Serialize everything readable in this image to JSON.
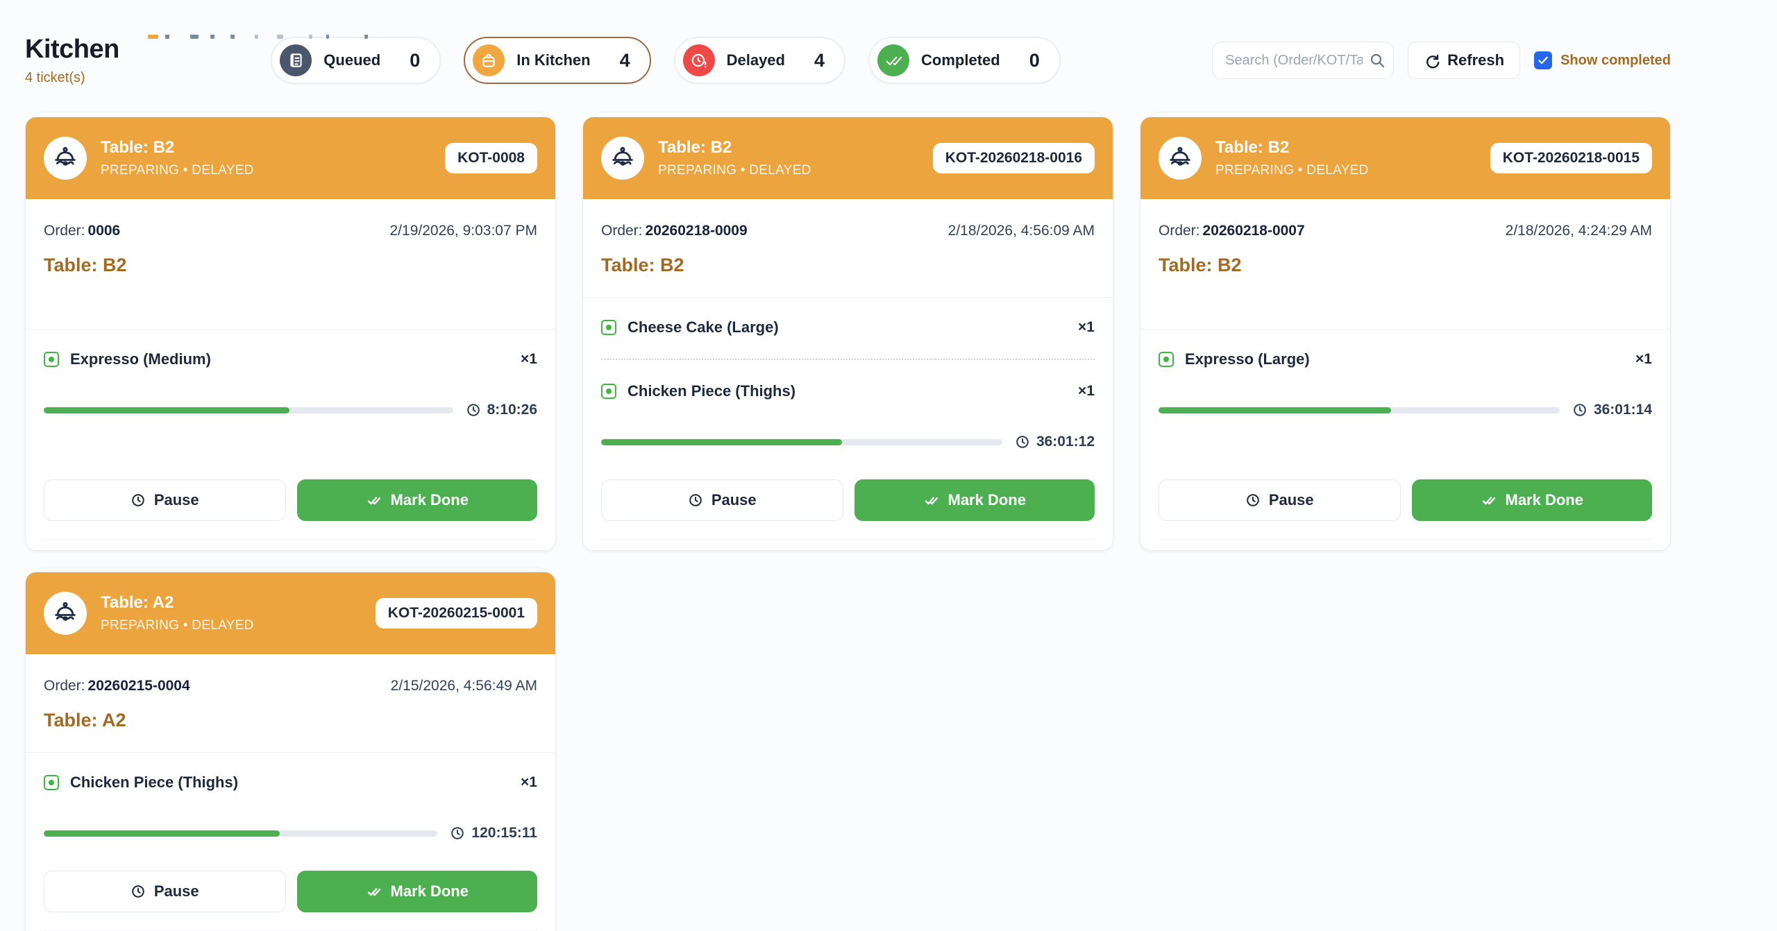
{
  "page": {
    "title": "Kitchen",
    "subtitle": "4 ticket(s)"
  },
  "tabs": [
    {
      "id": "queued",
      "label": "Queued",
      "count": "0",
      "icon": "receipt-icon",
      "circle_color": "#49566B",
      "selected": false
    },
    {
      "id": "in-kitchen",
      "label": "In Kitchen",
      "count": "4",
      "icon": "lunchbox-icon",
      "circle_color": "#F0A73F",
      "selected": true
    },
    {
      "id": "delayed",
      "label": "Delayed",
      "count": "4",
      "icon": "clock-alert-icon",
      "circle_color": "#EF4947",
      "selected": false
    },
    {
      "id": "completed",
      "label": "Completed",
      "count": "0",
      "icon": "double-check-icon",
      "circle_color": "#4CAF50",
      "selected": false
    }
  ],
  "controls": {
    "search_placeholder": "Search (Order/KOT/Tab...",
    "refresh_label": "Refresh",
    "show_completed_label": "Show completed",
    "show_completed_checked": true
  },
  "card_buttons": {
    "pause": "Pause",
    "mark_done": "Mark Done"
  },
  "cards": [
    {
      "table": "Table: B2",
      "status": "PREPARING • DELAYED",
      "kot": "KOT-0008",
      "order_label": "Order:",
      "order_no": "0006",
      "datetime": "2/19/2026, 9:03:07 PM",
      "table_line": "Table: B2",
      "items": [
        {
          "name": "Expresso (Medium)",
          "qty": "×1",
          "progress_pct": 60,
          "time": "8:10:26"
        }
      ]
    },
    {
      "table": "Table: B2",
      "status": "PREPARING • DELAYED",
      "kot": "KOT-20260218-0016",
      "order_label": "Order:",
      "order_no": "20260218-0009",
      "datetime": "2/18/2026, 4:56:09 AM",
      "table_line": "Table: B2",
      "items": [
        {
          "name": "Cheese Cake (Large)",
          "qty": "×1"
        },
        {
          "name": "Chicken Piece (Thighs)",
          "qty": "×1",
          "progress_pct": 60,
          "time": "36:01:12"
        }
      ]
    },
    {
      "table": "Table: B2",
      "status": "PREPARING • DELAYED",
      "kot": "KOT-20260218-0015",
      "order_label": "Order:",
      "order_no": "20260218-0007",
      "datetime": "2/18/2026, 4:24:29 AM",
      "table_line": "Table: B2",
      "items": [
        {
          "name": "Expresso (Large)",
          "qty": "×1",
          "progress_pct": 58,
          "time": "36:01:14"
        }
      ]
    },
    {
      "table": "Table: A2",
      "status": "PREPARING • DELAYED",
      "kot": "KOT-20260215-0001",
      "order_label": "Order:",
      "order_no": "20260215-0004",
      "datetime": "2/15/2026, 4:56:49 AM",
      "table_line": "Table: A2",
      "items": [
        {
          "name": "Chicken Piece (Thighs)",
          "qty": "×1",
          "progress_pct": 60,
          "time": "120:15:11"
        }
      ]
    }
  ],
  "colors": {
    "header_orange": "#ECA43F",
    "tab_orange": "#F0A73F",
    "success_green": "#4CAF50",
    "veg_green": "#3DB83D",
    "alert_red": "#EF4947",
    "queued_slate": "#49566B",
    "gold_text": "#A16B24",
    "selected_tab_border": "#9C6B45",
    "checkbox_blue": "#2467EB"
  }
}
